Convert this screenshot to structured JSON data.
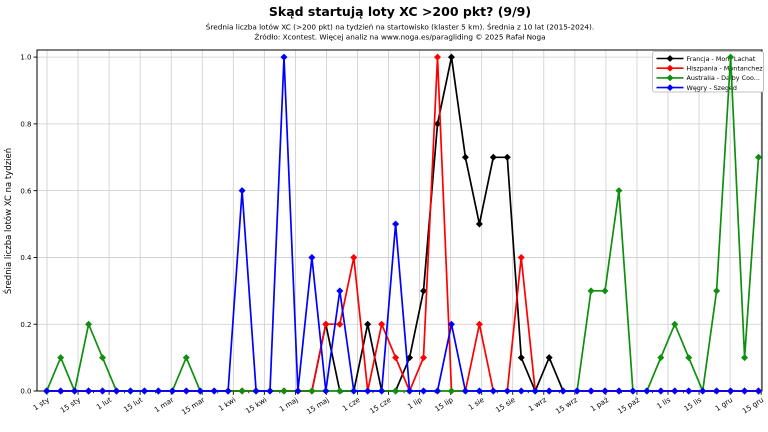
{
  "header": {
    "title": "Skąd startują loty XC >200 pkt? (9/9)",
    "subtitle": "Średnia liczba lotów XC (>200 pkt) na tydzień na startowisko (klaster 5 km). Średnia z 10 lat (2015-2024).",
    "source": "Źródło: Xcontest. Więcej analiz na www.noga.es/paragliding © 2025 Rafał Noga"
  },
  "chart_data": {
    "type": "line",
    "title": "Skąd startują loty XC >200 pkt? (9/9)",
    "subtitle": "Średnia liczba lotów XC (>200 pkt) na tydzień na startowisko (klaster 5 km). Średnia z 10 lat (2015-2024).",
    "source": "Źródło: Xcontest. Więcej analiz na www.noga.es/paragliding © 2025 Rafał Noga",
    "ylabel": "Średnia liczba lotów XC na tydzień",
    "xlabel": "",
    "ylim": [
      0.0,
      1.02
    ],
    "ytick_labels": [
      "0.0",
      "0.2",
      "0.4",
      "0.6",
      "0.8",
      "1.0"
    ],
    "ytick_values": [
      0.0,
      0.2,
      0.4,
      0.6,
      0.8,
      1.0
    ],
    "grid": true,
    "marker": "diamond",
    "legend_position": "upper right",
    "x_unit": "week-of-year (52 weekly points)",
    "xtick_labels": [
      "1 sty",
      "15 sty",
      "1 lut",
      "15 lut",
      "1 mar",
      "15 mar",
      "1 kwi",
      "15 kwi",
      "1 maj",
      "15 maj",
      "1 cze",
      "15 cze",
      "1 lip",
      "15 lip",
      "1 sie",
      "15 sie",
      "1 wrz",
      "15 wrz",
      "1 paź",
      "15 paź",
      "1 lis",
      "15 lis",
      "1 gru",
      "15 gru"
    ],
    "series": [
      {
        "name": "Francja - Mont Lachat",
        "color": "#000000",
        "values": [
          0,
          0,
          0,
          0,
          0,
          0,
          0,
          0,
          0,
          0,
          0,
          0,
          0,
          0,
          0,
          0,
          0,
          0,
          0,
          0,
          0.2,
          0,
          0,
          0.2,
          0,
          0,
          0.1,
          0.3,
          0.8,
          1.0,
          0.7,
          0.5,
          0.7,
          0.7,
          0.1,
          0,
          0.1,
          0,
          0,
          0,
          0,
          0,
          0,
          0,
          0,
          0,
          0,
          0,
          0,
          0,
          0,
          0
        ]
      },
      {
        "name": "Hiszpania - Montanchez",
        "color": "#ff0000",
        "values": [
          0,
          0,
          0,
          0,
          0,
          0,
          0,
          0,
          0,
          0,
          0,
          0,
          0,
          0,
          0,
          0,
          0,
          0,
          0,
          0,
          0.2,
          0.2,
          0.4,
          0,
          0.2,
          0.1,
          0,
          0.1,
          1.0,
          0,
          0,
          0.2,
          0,
          0,
          0.4,
          0,
          0,
          0,
          0,
          0,
          0,
          0,
          0,
          0,
          0,
          0,
          0,
          0,
          0,
          0,
          0,
          0
        ]
      },
      {
        "name": "Australia - Dalby Coo...",
        "color": "#0f8f0f",
        "values": [
          0,
          0.1,
          0,
          0.2,
          0.1,
          0,
          0,
          0,
          0,
          0,
          0.1,
          0,
          0,
          0,
          0,
          0,
          0,
          0,
          0,
          0,
          0,
          0,
          0,
          0,
          0,
          0,
          0,
          0,
          0,
          0,
          0,
          0,
          0,
          0,
          0,
          0,
          0,
          0,
          0,
          0.3,
          0.3,
          0.6,
          0,
          0,
          0.1,
          0.2,
          0.1,
          0,
          0.3,
          1.0,
          0.1,
          0.7
        ]
      },
      {
        "name": "Węgry - Szeged",
        "color": "#0000ff",
        "values": [
          0,
          0,
          0,
          0,
          0,
          0,
          0,
          0,
          0,
          0,
          0,
          0,
          0,
          0,
          0.6,
          0,
          0,
          1.0,
          0,
          0.4,
          0,
          0.3,
          0,
          0,
          0,
          0.5,
          0,
          0,
          0,
          0.2,
          0,
          0,
          0,
          0,
          0,
          0,
          0,
          0,
          0,
          0,
          0,
          0,
          0,
          0,
          0,
          0,
          0,
          0,
          0,
          0,
          0,
          0
        ]
      }
    ]
  }
}
